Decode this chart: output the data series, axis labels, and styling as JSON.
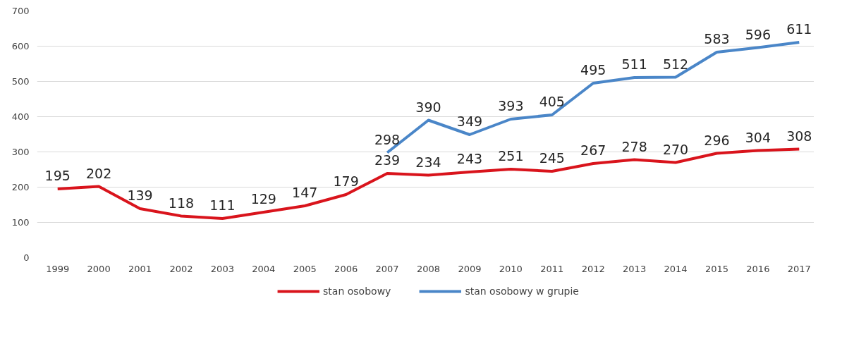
{
  "chart_data": {
    "type": "line",
    "categories": [
      "1999",
      "2000",
      "2001",
      "2002",
      "2003",
      "2004",
      "2005",
      "2006",
      "2007",
      "2008",
      "2009",
      "2010",
      "2011",
      "2012",
      "2013",
      "2014",
      "2015",
      "2016",
      "2017"
    ],
    "series": [
      {
        "name": "stan osobowy",
        "color": "#d9141c",
        "values": [
          195,
          202,
          139,
          118,
          111,
          129,
          147,
          179,
          239,
          234,
          243,
          251,
          245,
          267,
          278,
          270,
          296,
          304,
          308
        ]
      },
      {
        "name": "stan osobowy w grupie",
        "color": "#4a86c8",
        "values": [
          null,
          null,
          null,
          null,
          null,
          null,
          null,
          null,
          298,
          390,
          349,
          393,
          405,
          495,
          511,
          512,
          583,
          596,
          611
        ]
      }
    ],
    "ylim": [
      0,
      700
    ],
    "yticks": [
      0,
      100,
      200,
      300,
      400,
      500,
      600,
      700
    ],
    "grid": "y",
    "legend": "bottom",
    "data_labels": true,
    "marker": "none",
    "line_style": "solid"
  }
}
